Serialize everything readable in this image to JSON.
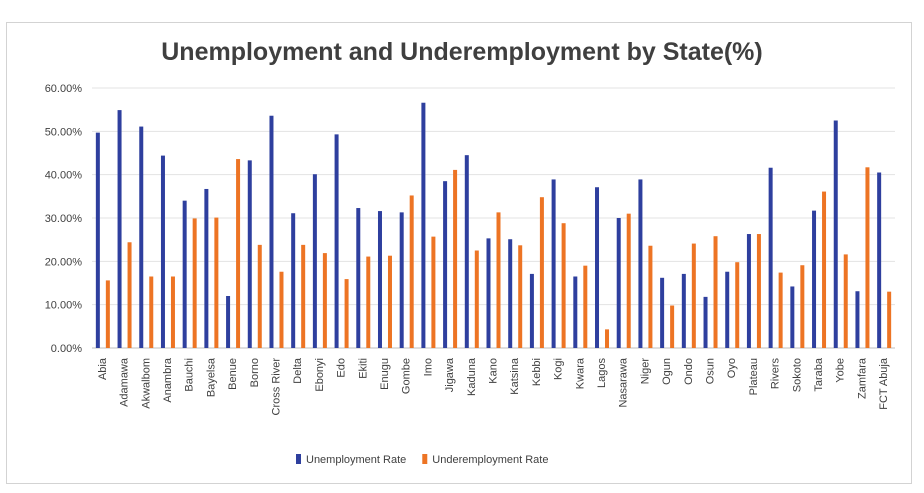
{
  "chart_data": {
    "type": "bar",
    "title": "Unemployment and Underemployment by State(%)",
    "xlabel": "",
    "ylabel": "",
    "ylim": [
      0,
      60
    ],
    "y_ticks": [
      "0.00%",
      "10.00%",
      "20.00%",
      "30.00%",
      "40.00%",
      "50.00%",
      "60.00%"
    ],
    "grid": true,
    "legend_position": "bottom",
    "categories": [
      "Abia",
      "Adamawa",
      "Akwalbom",
      "Anambra",
      "Bauchi",
      "Bayelsa",
      "Benue",
      "Borno",
      "Cross River",
      "Delta",
      "Ebonyi",
      "Edo",
      "Ekiti",
      "Enugu",
      "Gombe",
      "Imo",
      "Jigawa",
      "Kaduna",
      "Kano",
      "Katsina",
      "Kebbi",
      "Kogi",
      "Kwara",
      "Lagos",
      "Nasarawa",
      "Niger",
      "Ogun",
      "Ondo",
      "Osun",
      "Oyo",
      "Plateau",
      "Rivers",
      "Sokoto",
      "Taraba",
      "Yobe",
      "Zamfara",
      "FCT Abuja"
    ],
    "series": [
      {
        "name": "Unemployment Rate",
        "color": "#2e3f9e",
        "values": [
          49.7,
          54.9,
          51.1,
          44.4,
          34.0,
          36.7,
          12.0,
          43.3,
          53.6,
          31.1,
          40.1,
          49.3,
          32.3,
          31.6,
          31.3,
          56.6,
          38.5,
          44.5,
          25.3,
          25.1,
          17.1,
          38.9,
          16.5,
          37.1,
          30.0,
          38.9,
          16.2,
          17.1,
          11.8,
          17.6,
          26.3,
          41.6,
          14.2,
          31.7,
          52.5,
          13.1,
          40.5
        ]
      },
      {
        "name": "Underemployment Rate",
        "color": "#ed7424",
        "values": [
          15.6,
          24.4,
          16.5,
          16.5,
          29.9,
          30.1,
          43.6,
          23.8,
          17.6,
          23.8,
          21.9,
          15.9,
          21.1,
          21.3,
          35.2,
          25.7,
          41.1,
          22.5,
          31.3,
          23.7,
          34.8,
          28.8,
          19.0,
          4.3,
          31.0,
          23.6,
          9.8,
          24.1,
          25.8,
          19.8,
          26.3,
          17.4,
          19.1,
          36.1,
          21.6,
          41.7,
          13.0
        ]
      }
    ]
  }
}
